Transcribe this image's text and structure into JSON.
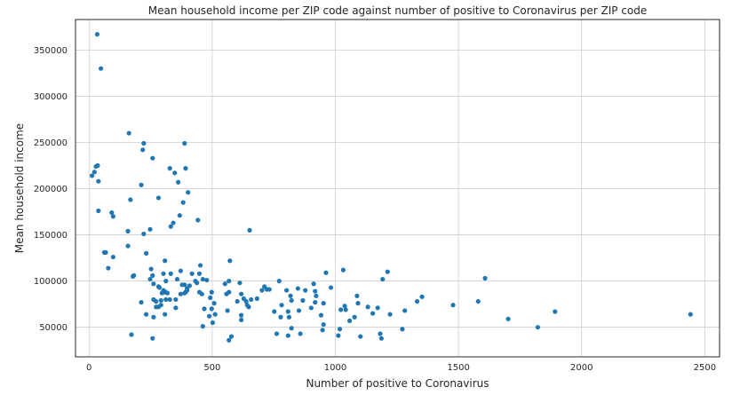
{
  "chart_data": {
    "type": "scatter",
    "title": "Mean household income per ZIP code against number of positive to Coronavirus per ZIP code",
    "xlabel": "Number of positive to Coronavirus",
    "ylabel": "Mean household income",
    "xlim": [
      -55,
      2560
    ],
    "ylim": [
      18000,
      383000
    ],
    "xticks": [
      0,
      500,
      1000,
      1500,
      2000,
      2500
    ],
    "yticks": [
      50000,
      100000,
      150000,
      200000,
      250000,
      300000,
      350000
    ],
    "xtick_labels": [
      "0",
      "500",
      "1000",
      "1500",
      "2000",
      "2500"
    ],
    "ytick_labels": [
      "50000",
      "100000",
      "150000",
      "200000",
      "250000",
      "300000",
      "350000"
    ],
    "grid": true,
    "legend": "none",
    "marker_color": "#1f77b4",
    "points": [
      [
        33,
        367000
      ],
      [
        48,
        330000
      ],
      [
        28,
        224000
      ],
      [
        35,
        225000
      ],
      [
        12,
        214000
      ],
      [
        22,
        218000
      ],
      [
        38,
        208000
      ],
      [
        38,
        176000
      ],
      [
        92,
        174000
      ],
      [
        98,
        170000
      ],
      [
        62,
        131000
      ],
      [
        68,
        131000
      ],
      [
        98,
        126000
      ],
      [
        78,
        114000
      ],
      [
        162,
        260000
      ],
      [
        222,
        249000
      ],
      [
        218,
        242000
      ],
      [
        258,
        233000
      ],
      [
        212,
        204000
      ],
      [
        168,
        188000
      ],
      [
        158,
        154000
      ],
      [
        222,
        151000
      ],
      [
        158,
        138000
      ],
      [
        178,
        105000
      ],
      [
        182,
        106000
      ],
      [
        172,
        42000
      ],
      [
        248,
        156000
      ],
      [
        232,
        130000
      ],
      [
        282,
        190000
      ],
      [
        252,
        113000
      ],
      [
        258,
        106000
      ],
      [
        248,
        102000
      ],
      [
        262,
        97000
      ],
      [
        282,
        94000
      ],
      [
        286,
        93000
      ],
      [
        262,
        80000
      ],
      [
        272,
        78000
      ],
      [
        292,
        79000
      ],
      [
        292,
        74000
      ],
      [
        272,
        72000
      ],
      [
        282,
        72000
      ],
      [
        212,
        77000
      ],
      [
        232,
        64000
      ],
      [
        262,
        61000
      ],
      [
        258,
        38000
      ],
      [
        302,
        108000
      ],
      [
        308,
        122000
      ],
      [
        312,
        100000
      ],
      [
        302,
        90000
      ],
      [
        306,
        88000
      ],
      [
        312,
        88000
      ],
      [
        296,
        87000
      ],
      [
        318,
        87000
      ],
      [
        312,
        80000
      ],
      [
        328,
        80000
      ],
      [
        308,
        64000
      ],
      [
        328,
        222000
      ],
      [
        348,
        217000
      ],
      [
        362,
        207000
      ],
      [
        332,
        159000
      ],
      [
        342,
        163000
      ],
      [
        358,
        102000
      ],
      [
        352,
        80000
      ],
      [
        352,
        71000
      ],
      [
        368,
        171000
      ],
      [
        332,
        108000
      ],
      [
        388,
        249000
      ],
      [
        392,
        222000
      ],
      [
        402,
        196000
      ],
      [
        382,
        185000
      ],
      [
        372,
        111000
      ],
      [
        378,
        96000
      ],
      [
        388,
        96000
      ],
      [
        392,
        88000
      ],
      [
        398,
        92000
      ],
      [
        388,
        87000
      ],
      [
        398,
        90000
      ],
      [
        408,
        95000
      ],
      [
        372,
        86000
      ],
      [
        442,
        166000
      ],
      [
        418,
        108000
      ],
      [
        448,
        108000
      ],
      [
        452,
        117000
      ],
      [
        438,
        98000
      ],
      [
        462,
        102000
      ],
      [
        432,
        100000
      ],
      [
        478,
        101000
      ],
      [
        448,
        88000
      ],
      [
        458,
        86000
      ],
      [
        468,
        70000
      ],
      [
        492,
        82000
      ],
      [
        498,
        88000
      ],
      [
        498,
        70000
      ],
      [
        488,
        62000
      ],
      [
        508,
        76000
      ],
      [
        512,
        64000
      ],
      [
        502,
        55000
      ],
      [
        462,
        51000
      ],
      [
        572,
        122000
      ],
      [
        568,
        100000
      ],
      [
        552,
        97000
      ],
      [
        558,
        86000
      ],
      [
        568,
        88000
      ],
      [
        562,
        68000
      ],
      [
        602,
        78000
      ],
      [
        612,
        98000
      ],
      [
        618,
        86000
      ],
      [
        628,
        81000
      ],
      [
        638,
        78000
      ],
      [
        642,
        74000
      ],
      [
        648,
        72000
      ],
      [
        618,
        58000
      ],
      [
        618,
        63000
      ],
      [
        578,
        40000
      ],
      [
        568,
        36000
      ],
      [
        652,
        155000
      ],
      [
        712,
        94000
      ],
      [
        722,
        91000
      ],
      [
        702,
        90000
      ],
      [
        682,
        81000
      ],
      [
        658,
        80000
      ],
      [
        732,
        91000
      ],
      [
        752,
        67000
      ],
      [
        772,
        100000
      ],
      [
        782,
        74000
      ],
      [
        778,
        61000
      ],
      [
        762,
        43000
      ],
      [
        802,
        90000
      ],
      [
        818,
        84000
      ],
      [
        822,
        79000
      ],
      [
        848,
        92000
      ],
      [
        808,
        67000
      ],
      [
        852,
        68000
      ],
      [
        812,
        61000
      ],
      [
        822,
        49000
      ],
      [
        858,
        43000
      ],
      [
        808,
        41000
      ],
      [
        878,
        90000
      ],
      [
        868,
        79000
      ],
      [
        912,
        97000
      ],
      [
        918,
        89000
      ],
      [
        922,
        84000
      ],
      [
        902,
        71000
      ],
      [
        918,
        77000
      ],
      [
        942,
        63000
      ],
      [
        952,
        76000
      ],
      [
        962,
        109000
      ],
      [
        982,
        93000
      ],
      [
        952,
        53000
      ],
      [
        948,
        47000
      ],
      [
        1012,
        41000
      ],
      [
        1018,
        48000
      ],
      [
        1022,
        69000
      ],
      [
        1038,
        73000
      ],
      [
        1042,
        69000
      ],
      [
        1032,
        112000
      ],
      [
        1058,
        57000
      ],
      [
        1078,
        61000
      ],
      [
        1088,
        84000
      ],
      [
        1092,
        76000
      ],
      [
        1102,
        40000
      ],
      [
        1132,
        72000
      ],
      [
        1152,
        65000
      ],
      [
        1172,
        71000
      ],
      [
        1182,
        43000
      ],
      [
        1187,
        38000
      ],
      [
        1192,
        102000
      ],
      [
        1212,
        110000
      ],
      [
        1222,
        64000
      ],
      [
        1272,
        48000
      ],
      [
        1282,
        68000
      ],
      [
        1332,
        78000
      ],
      [
        1352,
        83000
      ],
      [
        1478,
        74000
      ],
      [
        1580,
        78000
      ],
      [
        1608,
        103000
      ],
      [
        1702,
        59000
      ],
      [
        1822,
        50000
      ],
      [
        1892,
        67000
      ],
      [
        2442,
        64000
      ]
    ]
  }
}
